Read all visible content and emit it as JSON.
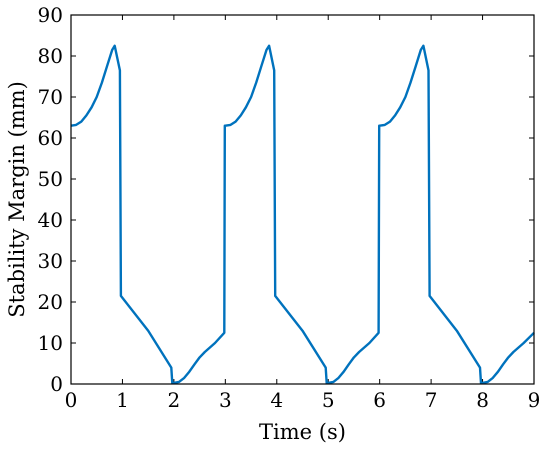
{
  "chart_data": {
    "type": "line",
    "title": "",
    "xlabel": "Time (s)",
    "ylabel": "Stability Margin (mm)",
    "xlim": [
      0,
      9
    ],
    "ylim": [
      0,
      90
    ],
    "xticks": [
      0,
      1,
      2,
      3,
      4,
      5,
      6,
      7,
      8,
      9
    ],
    "yticks": [
      0,
      10,
      20,
      30,
      40,
      50,
      60,
      70,
      80,
      90
    ],
    "grid": false,
    "legend": "none",
    "series": [
      {
        "color": "#0072BD",
        "x": [
          0,
          0.1,
          0.2,
          0.3,
          0.4,
          0.5,
          0.6,
          0.7,
          0.8,
          0.85,
          0.95,
          0.97,
          1.5,
          1.95,
          1.97,
          2.1,
          2.2,
          2.3,
          2.4,
          2.5,
          2.6,
          2.8,
          2.98,
          2.99,
          3.0,
          3.1,
          3.2,
          3.3,
          3.4,
          3.5,
          3.6,
          3.7,
          3.8,
          3.85,
          3.95,
          3.97,
          4.5,
          4.95,
          4.97,
          5.1,
          5.2,
          5.3,
          5.4,
          5.5,
          5.6,
          5.8,
          5.98,
          5.99,
          6.0,
          6.1,
          6.2,
          6.3,
          6.4,
          6.5,
          6.6,
          6.7,
          6.8,
          6.85,
          6.95,
          6.97,
          7.5,
          7.95,
          7.97,
          8.1,
          8.2,
          8.3,
          8.4,
          8.5,
          8.6,
          8.8,
          9.0
        ],
        "y": [
          63,
          63.2,
          64,
          65.5,
          67.5,
          70,
          73.5,
          77.5,
          81.5,
          82.5,
          76.5,
          21.5,
          13,
          4,
          0.2,
          0.5,
          1.5,
          3,
          4.8,
          6.5,
          7.8,
          10,
          12.5,
          63,
          63,
          63.2,
          64,
          65.5,
          67.5,
          70,
          73.5,
          77.5,
          81.5,
          82.5,
          76.5,
          21.5,
          13,
          4,
          0.2,
          0.5,
          1.5,
          3,
          4.8,
          6.5,
          7.8,
          10,
          12.5,
          63,
          63,
          63.2,
          64,
          65.5,
          67.5,
          70,
          73.5,
          77.5,
          81.5,
          82.5,
          76.5,
          21.5,
          13,
          4,
          0.2,
          0.5,
          1.5,
          3,
          4.8,
          6.5,
          7.8,
          10,
          12.5
        ]
      }
    ]
  }
}
